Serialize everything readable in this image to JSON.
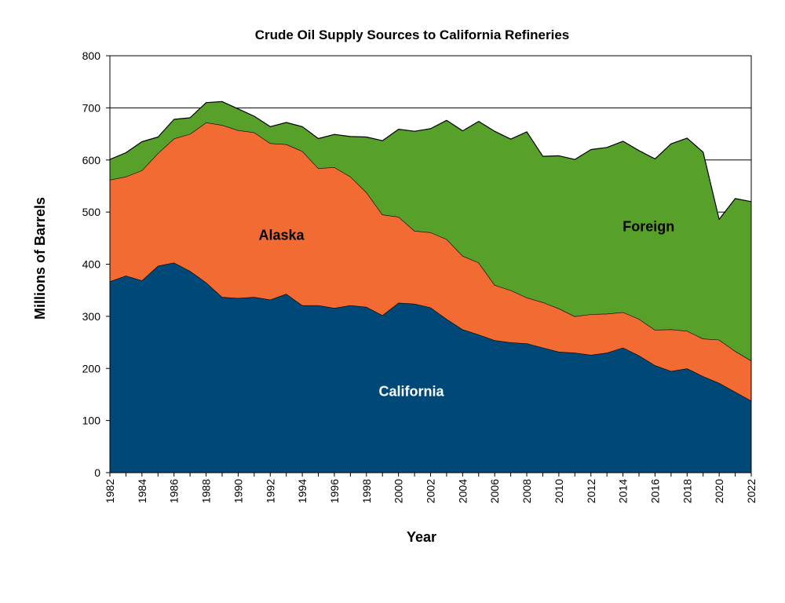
{
  "chart_data": {
    "type": "area",
    "stacked": true,
    "title": "Crude Oil Supply Sources to California Refineries",
    "xlabel": "Year",
    "ylabel": "Millions of Barrels",
    "xlim": [
      1982,
      2022
    ],
    "ylim": [
      0,
      800
    ],
    "yticks": [
      0,
      100,
      200,
      300,
      400,
      500,
      600,
      700,
      800
    ],
    "xticks": [
      1982,
      1984,
      1986,
      1988,
      1990,
      1992,
      1994,
      1996,
      1998,
      2000,
      2002,
      2004,
      2006,
      2008,
      2010,
      2012,
      2014,
      2016,
      2018,
      2020,
      2022
    ],
    "grid": "horizontal",
    "x": [
      1982,
      1983,
      1984,
      1985,
      1986,
      1987,
      1988,
      1989,
      1990,
      1991,
      1992,
      1993,
      1994,
      1995,
      1996,
      1997,
      1998,
      1999,
      2000,
      2001,
      2002,
      2003,
      2004,
      2005,
      2006,
      2007,
      2008,
      2009,
      2010,
      2011,
      2012,
      2013,
      2014,
      2015,
      2016,
      2017,
      2018,
      2019,
      2020,
      2021,
      2022
    ],
    "series": [
      {
        "name": "California",
        "color": "#004878",
        "label_color": "#ffffff",
        "label_x": 2000.8,
        "label_y": 147,
        "values": [
          367,
          378,
          369,
          397,
          403,
          387,
          365,
          337,
          335,
          337,
          332,
          343,
          321,
          321,
          316,
          321,
          318,
          302,
          326,
          324,
          317,
          295,
          275,
          265,
          254,
          250,
          248,
          240,
          232,
          230,
          226,
          230,
          240,
          225,
          206,
          195,
          200,
          185,
          172,
          155,
          138
        ]
      },
      {
        "name": "Alaska",
        "color": "#f26b32",
        "label_color": "#000000",
        "label_x": 1992.7,
        "label_y": 447,
        "values": [
          195,
          190,
          211,
          216,
          238,
          263,
          307,
          330,
          322,
          316,
          300,
          287,
          296,
          263,
          270,
          247,
          220,
          193,
          165,
          140,
          144,
          153,
          141,
          138,
          106,
          100,
          88,
          87,
          83,
          70,
          78,
          75,
          68,
          70,
          68,
          80,
          72,
          72,
          83,
          78,
          77
        ]
      },
      {
        "name": "Foreign",
        "color": "#57a02a",
        "label_color": "#000000",
        "label_x": 2015.6,
        "label_y": 463,
        "values": [
          39,
          46,
          55,
          31,
          37,
          31,
          38,
          45,
          41,
          31,
          32,
          42,
          47,
          57,
          63,
          77,
          106,
          142,
          168,
          191,
          199,
          228,
          240,
          271,
          295,
          290,
          318,
          280,
          293,
          301,
          316,
          319,
          328,
          323,
          328,
          356,
          370,
          358,
          231,
          293,
          305
        ]
      }
    ]
  }
}
